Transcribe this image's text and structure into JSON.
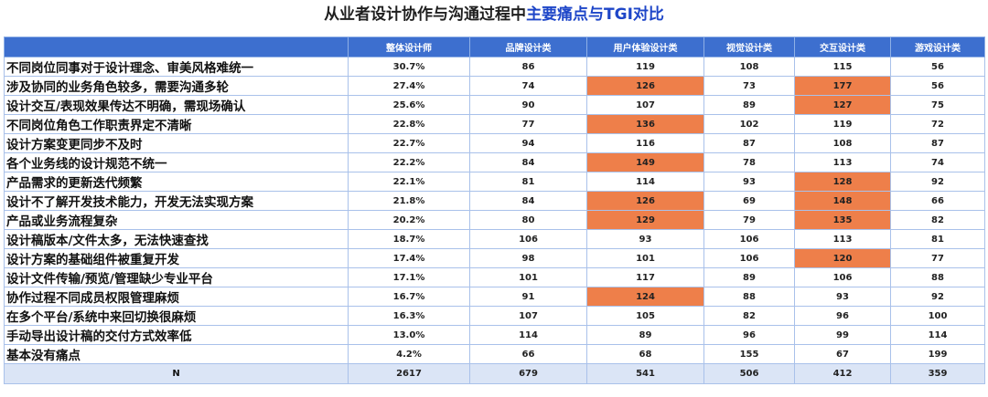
{
  "title_prefix": "从业者设计协作与沟通过程中",
  "title_highlight": "主要痛点与TGI对比",
  "colors": {
    "header_bg": "#3d6fcf",
    "highlight": "#ee7f4a",
    "total_bg": "#dbe5f6",
    "title_accent": "#1e46c8"
  },
  "chart_data": {
    "type": "table",
    "title": "从业者设计协作与沟通过程中主要痛点与TGI对比",
    "columns": [
      "",
      "整体设计师",
      "品牌设计类",
      "用户体验设计类",
      "视觉设计类",
      "交互设计类",
      "游戏设计类"
    ],
    "rows": [
      {
        "label": "不同岗位同事对于设计理念、审美风格难统一",
        "cells": [
          "30.7%",
          "86",
          "119",
          "108",
          "115",
          "56"
        ],
        "highlight": []
      },
      {
        "label": "涉及协同的业务角色较多，需要沟通多轮",
        "cells": [
          "27.4%",
          "74",
          "126",
          "73",
          "177",
          "56"
        ],
        "highlight": [
          2,
          4
        ]
      },
      {
        "label": "设计交互/表现效果传达不明确，需现场确认",
        "cells": [
          "25.6%",
          "90",
          "107",
          "89",
          "127",
          "75"
        ],
        "highlight": [
          4
        ]
      },
      {
        "label": "不同岗位角色工作职责界定不清晰",
        "cells": [
          "22.8%",
          "77",
          "136",
          "102",
          "119",
          "72"
        ],
        "highlight": [
          2
        ]
      },
      {
        "label": "设计方案变更同步不及时",
        "cells": [
          "22.7%",
          "94",
          "116",
          "87",
          "108",
          "87"
        ],
        "highlight": []
      },
      {
        "label": "各个业务线的设计规范不统一",
        "cells": [
          "22.2%",
          "84",
          "149",
          "78",
          "113",
          "74"
        ],
        "highlight": [
          2
        ]
      },
      {
        "label": "产品需求的更新迭代频繁",
        "cells": [
          "22.1%",
          "81",
          "114",
          "93",
          "128",
          "92"
        ],
        "highlight": [
          4
        ]
      },
      {
        "label": "设计不了解开发技术能力，开发无法实现方案",
        "cells": [
          "21.8%",
          "84",
          "126",
          "69",
          "148",
          "66"
        ],
        "highlight": [
          2,
          4
        ]
      },
      {
        "label": "产品或业务流程复杂",
        "cells": [
          "20.2%",
          "80",
          "129",
          "79",
          "135",
          "82"
        ],
        "highlight": [
          2,
          4
        ]
      },
      {
        "label": "设计稿版本/文件太多，无法快速查找",
        "cells": [
          "18.7%",
          "106",
          "93",
          "106",
          "113",
          "81"
        ],
        "highlight": []
      },
      {
        "label": "设计方案的基础组件被重复开发",
        "cells": [
          "17.4%",
          "98",
          "101",
          "106",
          "120",
          "77"
        ],
        "highlight": [
          4
        ]
      },
      {
        "label": "设计文件传输/预览/管理缺少专业平台",
        "cells": [
          "17.1%",
          "101",
          "117",
          "89",
          "106",
          "88"
        ],
        "highlight": []
      },
      {
        "label": "协作过程不同成员权限管理麻烦",
        "cells": [
          "16.7%",
          "91",
          "124",
          "88",
          "93",
          "92"
        ],
        "highlight": [
          2
        ]
      },
      {
        "label": "在多个平台/系统中来回切换很麻烦",
        "cells": [
          "16.3%",
          "107",
          "105",
          "82",
          "96",
          "100"
        ],
        "highlight": []
      },
      {
        "label": "手动导出设计稿的交付方式效率低",
        "cells": [
          "13.0%",
          "114",
          "89",
          "96",
          "99",
          "114"
        ],
        "highlight": []
      },
      {
        "label": "基本没有痛点",
        "cells": [
          "4.2%",
          "66",
          "68",
          "155",
          "67",
          "199"
        ],
        "highlight": []
      }
    ],
    "total": {
      "label": "N",
      "cells": [
        "2617",
        "679",
        "541",
        "506",
        "412",
        "359"
      ]
    }
  }
}
